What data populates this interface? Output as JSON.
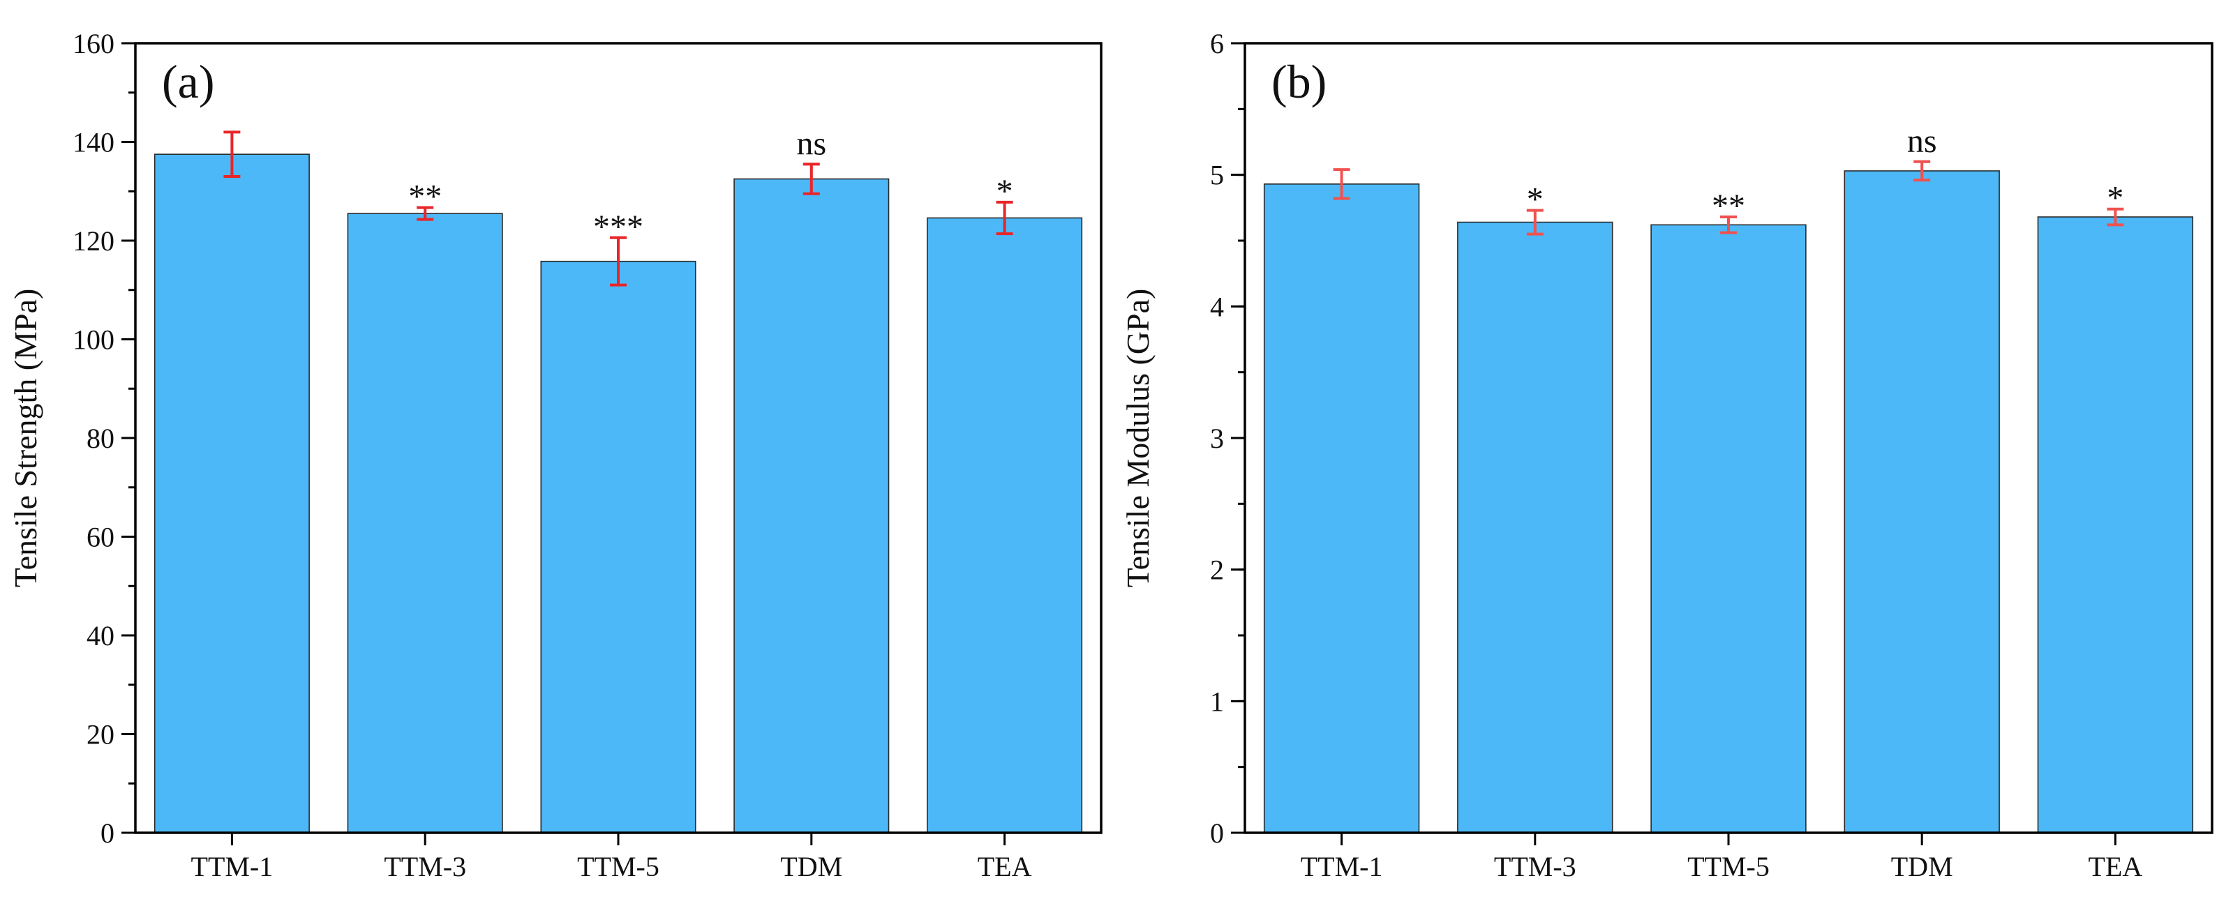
{
  "chart_data": [
    {
      "type": "bar",
      "panel_label": "(a)",
      "title": "",
      "xlabel": "",
      "ylabel": "Tensile Strength (MPa)",
      "categories": [
        "TTM-1",
        "TTM-3",
        "TTM-5",
        "TDM",
        "TEA"
      ],
      "values": [
        137.5,
        125.5,
        115.8,
        132.5,
        124.6
      ],
      "errors": [
        4.5,
        1.2,
        4.8,
        3.0,
        3.2
      ],
      "significance": [
        "",
        "**",
        "***",
        "ns",
        "*"
      ],
      "ylim": [
        0,
        160
      ],
      "yticks": [
        "0",
        "20",
        "40",
        "60",
        "80",
        "100",
        "120",
        "140",
        "160"
      ],
      "bar_color": "#4DB8F7",
      "error_color": "#E8262A",
      "grid": false
    },
    {
      "type": "bar",
      "panel_label": "(b)",
      "title": "",
      "xlabel": "",
      "ylabel": "Tensile Modulus (GPa)",
      "categories": [
        "TTM-1",
        "TTM-3",
        "TTM-5",
        "TDM",
        "TEA"
      ],
      "values": [
        4.93,
        4.64,
        4.62,
        5.03,
        4.68
      ],
      "errors": [
        0.11,
        0.09,
        0.06,
        0.07,
        0.06
      ],
      "significance": [
        "",
        "*",
        "**",
        "ns",
        "*"
      ],
      "ylim": [
        0,
        6
      ],
      "yticks": [
        "0",
        "1",
        "2",
        "3",
        "4",
        "5",
        "6"
      ],
      "bar_color": "#4DB8F7",
      "error_color": "#F0524F",
      "grid": false
    }
  ]
}
